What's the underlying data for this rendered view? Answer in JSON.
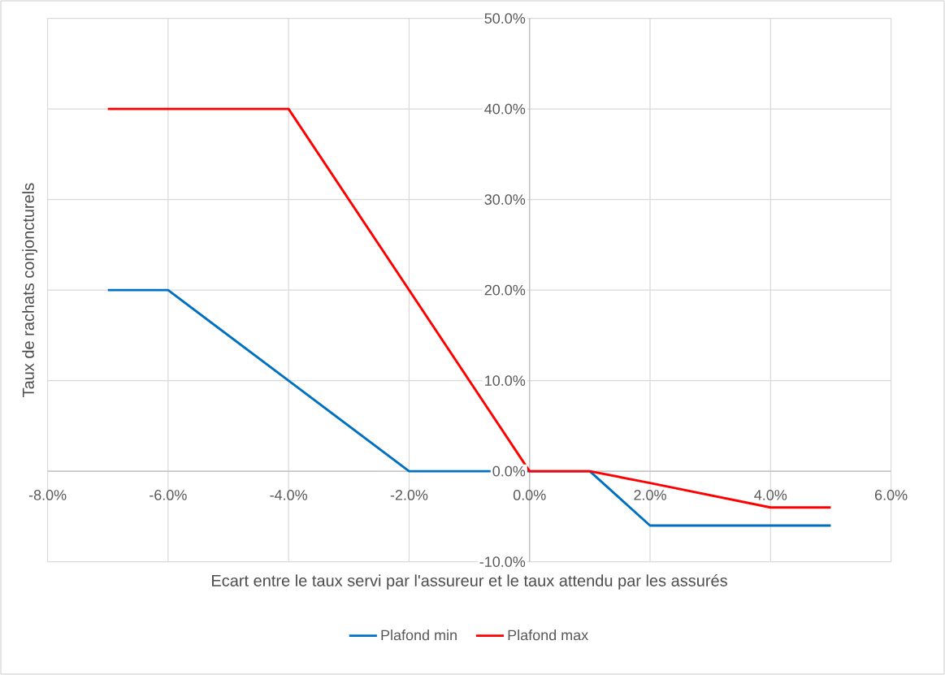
{
  "chart_data": {
    "type": "line",
    "xlabel": "Ecart entre le taux servi par l'assureur et le taux attendu par les assurés",
    "ylabel": "Taux de rachats conjoncturels",
    "x": [
      -7,
      -6,
      -4,
      -2,
      0,
      1,
      2,
      4,
      5
    ],
    "series": [
      {
        "name": "Plafond min",
        "color": "#0070c0",
        "values": [
          20,
          20,
          10,
          0,
          0,
          0,
          -6,
          -6,
          -6
        ]
      },
      {
        "name": "Plafond max",
        "color": "#ff0000",
        "values": [
          40,
          40,
          40,
          20,
          0,
          0,
          -1.3,
          -4,
          -4
        ]
      }
    ],
    "xlim": [
      -8,
      6
    ],
    "ylim": [
      -10,
      50
    ],
    "xticks": [
      {
        "value": -8,
        "label": "-8.0%"
      },
      {
        "value": -6,
        "label": "-6.0%"
      },
      {
        "value": -4,
        "label": "-4.0%"
      },
      {
        "value": -2,
        "label": "-2.0%"
      },
      {
        "value": 0,
        "label": "0.0%"
      },
      {
        "value": 2,
        "label": "2.0%"
      },
      {
        "value": 4,
        "label": "4.0%"
      },
      {
        "value": 6,
        "label": "6.0%"
      }
    ],
    "yticks": [
      {
        "value": -10,
        "label": "-10.0%"
      },
      {
        "value": 0,
        "label": "0.0%"
      },
      {
        "value": 10,
        "label": "10.0%"
      },
      {
        "value": 20,
        "label": "20.0%"
      },
      {
        "value": 30,
        "label": "30.0%"
      },
      {
        "value": 40,
        "label": "40.0%"
      },
      {
        "value": 50,
        "label": "50.0%"
      }
    ],
    "grid": true,
    "legend": "bottom",
    "marker": "none",
    "line_style": "solid"
  }
}
